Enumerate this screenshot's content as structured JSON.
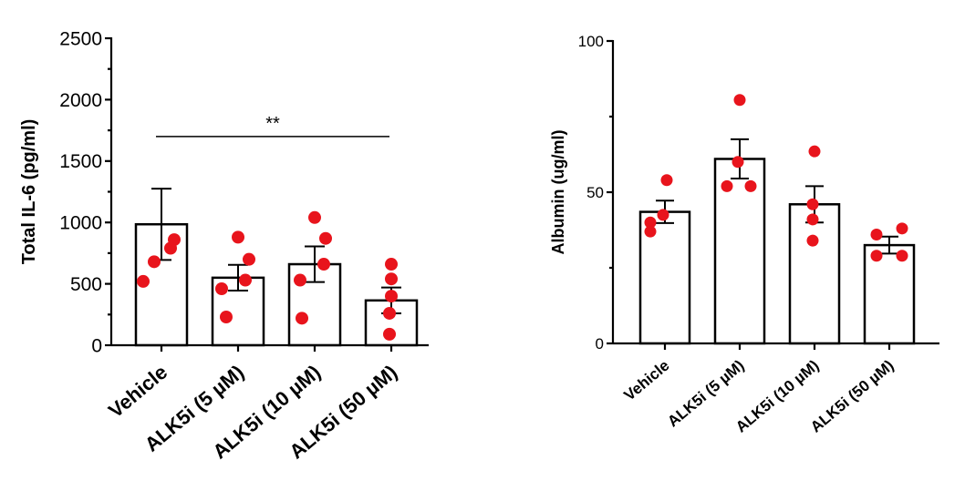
{
  "chart_data": [
    {
      "type": "bar",
      "title": "",
      "xlabel": "",
      "ylabel": "Total IL-6 (pg/ml)",
      "ylim": [
        0,
        2500
      ],
      "yticks": [
        0,
        500,
        1000,
        1500,
        2000,
        2500
      ],
      "categories": [
        "Vehicle",
        "ALK5i (5 µM)",
        "ALK5i  (10 µM)",
        "ALK5i  (50 µM)"
      ],
      "values": [
        985,
        550,
        660,
        365
      ],
      "sem": [
        290,
        105,
        145,
        105
      ],
      "points": [
        [
          520,
          680,
          790,
          860
        ],
        [
          230,
          460,
          530,
          700,
          880
        ],
        [
          220,
          530,
          660,
          870,
          1040
        ],
        [
          90,
          260,
          400,
          540,
          660
        ]
      ],
      "bar_color": "#ffffff",
      "point_color": "#e8141c",
      "annotation": {
        "text": "**",
        "from": 0,
        "to": 3,
        "y": 1700
      },
      "grid": false,
      "legend": "none"
    },
    {
      "type": "bar",
      "title": "",
      "xlabel": "",
      "ylabel": "Albumin (ug/ml)",
      "ylim": [
        0,
        100
      ],
      "yticks": [
        0,
        50,
        100
      ],
      "categories": [
        "Vehicle",
        "ALK5i (5 µM)",
        "ALK5i (10 µM)",
        "ALK5i (50 µM)"
      ],
      "values": [
        43.5,
        61,
        46,
        32.5
      ],
      "sem": [
        3.7,
        6.5,
        6,
        2.8
      ],
      "points": [
        [
          37,
          40,
          42.5,
          54
        ],
        [
          52,
          52,
          60,
          80.5
        ],
        [
          34,
          41,
          46,
          63.5
        ],
        [
          29,
          29,
          36,
          38
        ]
      ],
      "bar_color": "#ffffff",
      "point_color": "#e8141c",
      "grid": false,
      "legend": "none"
    }
  ]
}
